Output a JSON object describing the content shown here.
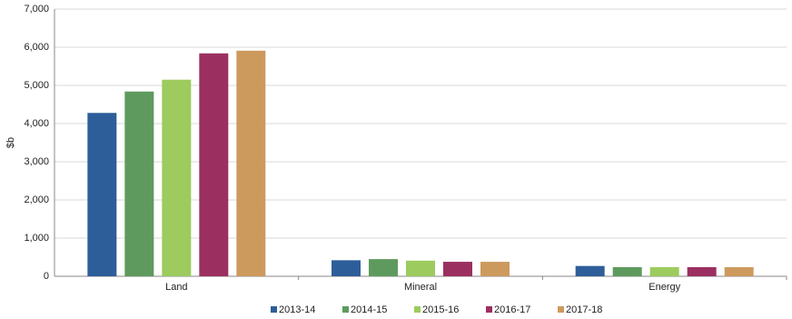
{
  "chart_data": {
    "type": "bar",
    "y_label": "$b",
    "categories": [
      "Land",
      "Mineral",
      "Energy"
    ],
    "series": [
      {
        "name": "2013-14",
        "color": "#2e5e99",
        "values": [
          4280,
          420,
          270
        ]
      },
      {
        "name": "2014-15",
        "color": "#5e9a5e",
        "values": [
          4840,
          450,
          240
        ]
      },
      {
        "name": "2015-16",
        "color": "#9dcb5e",
        "values": [
          5150,
          410,
          240
        ]
      },
      {
        "name": "2016-17",
        "color": "#9b3060",
        "values": [
          5840,
          380,
          240
        ]
      },
      {
        "name": "2017-18",
        "color": "#cd9a5e",
        "values": [
          5910,
          380,
          240
        ]
      }
    ],
    "ylim": [
      0,
      7000
    ],
    "yticks": [
      0,
      {
        "value": 1000,
        "label": "1,000"
      },
      {
        "value": 2000,
        "label": "2,000"
      },
      {
        "value": 3000,
        "label": "3,000"
      },
      {
        "value": 4000,
        "label": "4,000"
      },
      {
        "value": 5000,
        "label": "5,000"
      },
      {
        "value": 6000,
        "label": "6,000"
      },
      {
        "value": 7000,
        "label": "7,000"
      }
    ],
    "grid": true,
    "legend": "bottom"
  }
}
